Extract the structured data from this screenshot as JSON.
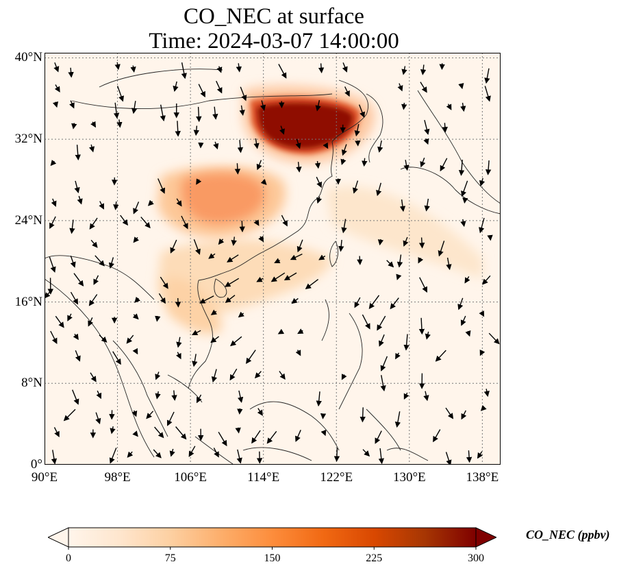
{
  "title": {
    "line1": "CO_NEC at surface",
    "line2": "Time: 2024-03-07 14:00:00"
  },
  "map": {
    "projection": "PlateCarree",
    "lon_range": [
      90,
      140
    ],
    "lat_range": [
      0,
      40.5
    ],
    "gridlines": "dotted",
    "lon_ticks": [
      {
        "value": 90,
        "label": "90°E"
      },
      {
        "value": 98,
        "label": "98°E"
      },
      {
        "value": 106,
        "label": "106°E"
      },
      {
        "value": 114,
        "label": "114°E"
      },
      {
        "value": 122,
        "label": "122°E"
      },
      {
        "value": 130,
        "label": "130°E"
      },
      {
        "value": 138,
        "label": "138°E"
      }
    ],
    "lat_ticks": [
      {
        "value": 0,
        "label": "0°"
      },
      {
        "value": 8,
        "label": "8°N"
      },
      {
        "value": 16,
        "label": "16°N"
      },
      {
        "value": 24,
        "label": "24°N"
      },
      {
        "value": 32,
        "label": "32°N"
      },
      {
        "value": 40,
        "label": "40°N"
      }
    ],
    "field_colors": {
      "low": "#fff5eb",
      "mid": "#fdae6b",
      "high": "#f16913",
      "max": "#7f0000"
    },
    "concentration_regions": [
      {
        "name": "north-china-plain",
        "lon": [
          115,
          125
        ],
        "lat": [
          33,
          39
        ],
        "level": "max"
      },
      {
        "name": "sichuan-basin",
        "lon": [
          104,
          112
        ],
        "lat": [
          25,
          31
        ],
        "level": "high"
      },
      {
        "name": "south-china",
        "lon": [
          102,
          120
        ],
        "lat": [
          16,
          26
        ],
        "level": "mid"
      },
      {
        "name": "east-china-sea",
        "lon": [
          118,
          130
        ],
        "lat": [
          24,
          34
        ],
        "level": "low"
      }
    ]
  },
  "colorbar": {
    "min": 0,
    "max": 300,
    "ticks": [
      {
        "value": 0,
        "label": "0"
      },
      {
        "value": 75,
        "label": "75"
      },
      {
        "value": 150,
        "label": "150"
      },
      {
        "value": 225,
        "label": "225"
      },
      {
        "value": 300,
        "label": "300"
      }
    ],
    "label": "CO_NEC (ppbv)",
    "colors": [
      "#fff5eb",
      "#fee6ce",
      "#fdd0a2",
      "#fdae6b",
      "#fd8d3c",
      "#f16913",
      "#d94801",
      "#a63603",
      "#7f0000"
    ]
  }
}
